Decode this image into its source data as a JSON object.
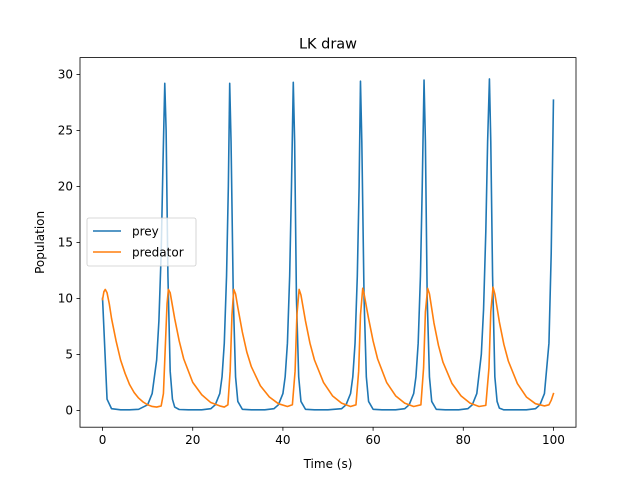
{
  "chart_data": {
    "type": "line",
    "title": "LK draw",
    "xlabel": "Time (s)",
    "ylabel": "Population",
    "xlim": [
      -5,
      105
    ],
    "ylim": [
      -1.5,
      31.5
    ],
    "xticks": [
      0,
      20,
      40,
      60,
      80,
      100
    ],
    "yticks": [
      0,
      5,
      10,
      15,
      20,
      25,
      30
    ],
    "grid": false,
    "legend_position": "center-left",
    "series": [
      {
        "name": "prey",
        "color": "#1f77b4",
        "x": [
          0,
          1,
          2,
          4,
          6,
          8,
          10,
          11,
          12,
          12.5,
          13,
          13.4,
          13.8,
          14.1,
          14.5,
          15,
          15.5,
          16,
          17,
          19,
          22,
          24,
          25,
          26,
          26.5,
          27,
          27.5,
          27.9,
          28.2,
          28.5,
          29,
          29.5,
          30,
          31,
          33,
          36,
          38,
          39,
          40,
          40.5,
          41,
          41.5,
          41.9,
          42.3,
          42.6,
          43,
          43.5,
          44,
          45,
          47,
          50,
          53,
          54,
          55,
          55.5,
          56,
          56.5,
          56.9,
          57.2,
          57.5,
          58,
          58.5,
          59,
          60,
          62,
          65,
          67,
          68,
          69,
          69.5,
          70,
          70.5,
          70.9,
          71.3,
          71.6,
          72,
          72.5,
          73,
          74,
          76,
          79,
          81,
          82,
          83,
          84,
          84.5,
          85,
          85.4,
          85.8,
          86.1,
          86.5,
          87,
          87.5,
          88,
          89,
          91,
          94,
          96,
          97,
          98,
          99,
          99.5,
          100
        ],
        "y": [
          10,
          1.0,
          0.15,
          0.05,
          0.05,
          0.1,
          0.5,
          1.5,
          4.5,
          8,
          14,
          22,
          29.2,
          25,
          12,
          3.5,
          1.0,
          0.3,
          0.08,
          0.05,
          0.05,
          0.15,
          0.5,
          1.5,
          3,
          6,
          12,
          20,
          29.2,
          24,
          10,
          3,
          0.8,
          0.1,
          0.05,
          0.05,
          0.15,
          0.5,
          1.5,
          3,
          6,
          12,
          20,
          29.3,
          24,
          10,
          3,
          0.8,
          0.1,
          0.05,
          0.05,
          0.15,
          0.5,
          1.5,
          3,
          6,
          12,
          20,
          29.4,
          24,
          10,
          3,
          0.8,
          0.1,
          0.05,
          0.05,
          0.15,
          0.5,
          1.5,
          3,
          6,
          12,
          20,
          29.5,
          24,
          10,
          3,
          0.8,
          0.1,
          0.05,
          0.05,
          0.15,
          0.5,
          1.5,
          5,
          9,
          16,
          24,
          29.6,
          24,
          12,
          3,
          0.8,
          0.2,
          0.05,
          0.05,
          0.05,
          0.15,
          0.5,
          1.5,
          6,
          14,
          27.7
        ]
      },
      {
        "name": "predator",
        "color": "#ff7f0e",
        "x": [
          0,
          0.3,
          0.6,
          1,
          1.5,
          2,
          3,
          4,
          5,
          6,
          7,
          8,
          9,
          10,
          11,
          12,
          13,
          13.5,
          13.9,
          14.3,
          14.6,
          15,
          16,
          17,
          18,
          20,
          22,
          24,
          26,
          27,
          27.8,
          28.3,
          28.7,
          29.1,
          29.5,
          30,
          31,
          32,
          33,
          35,
          37,
          39,
          41,
          42.1,
          42.7,
          43.1,
          43.6,
          44,
          45,
          46,
          47,
          49,
          51,
          53,
          55,
          56.2,
          56.8,
          57.2,
          57.7,
          58,
          59,
          60,
          61,
          63,
          65,
          67,
          69,
          70.6,
          71.2,
          71.6,
          72.1,
          72.5,
          73.5,
          74.5,
          75.5,
          77.5,
          79.5,
          81.5,
          83.5,
          85,
          85.7,
          86.1,
          86.6,
          87,
          88,
          89,
          90,
          92,
          94,
          96,
          98,
          99,
          99.5,
          100
        ],
        "y": [
          9.9,
          10.6,
          10.8,
          10.5,
          9.5,
          8.2,
          6.2,
          4.5,
          3.3,
          2.3,
          1.6,
          1.1,
          0.75,
          0.5,
          0.35,
          0.3,
          0.4,
          1.5,
          5.5,
          9.5,
          10.8,
          10.5,
          8.2,
          6.2,
          4.6,
          2.5,
          1.4,
          0.7,
          0.4,
          0.3,
          0.5,
          3.5,
          8.5,
          10.8,
          10.4,
          9.2,
          7.0,
          5.2,
          3.9,
          2.2,
          1.2,
          0.6,
          0.35,
          0.5,
          3.5,
          8.5,
          10.8,
          10.3,
          8.0,
          6.0,
          4.5,
          2.5,
          1.3,
          0.65,
          0.35,
          0.5,
          3.5,
          8.5,
          10.9,
          10.4,
          8.2,
          6.2,
          4.6,
          2.5,
          1.3,
          0.65,
          0.35,
          0.5,
          3.8,
          8.8,
          10.9,
          10.4,
          7.8,
          5.8,
          4.3,
          2.4,
          1.3,
          0.65,
          0.35,
          0.45,
          3.8,
          8.8,
          11.0,
          10.4,
          7.9,
          5.9,
          4.4,
          2.4,
          1.2,
          0.6,
          0.4,
          0.5,
          0.9,
          1.5
        ]
      }
    ]
  }
}
